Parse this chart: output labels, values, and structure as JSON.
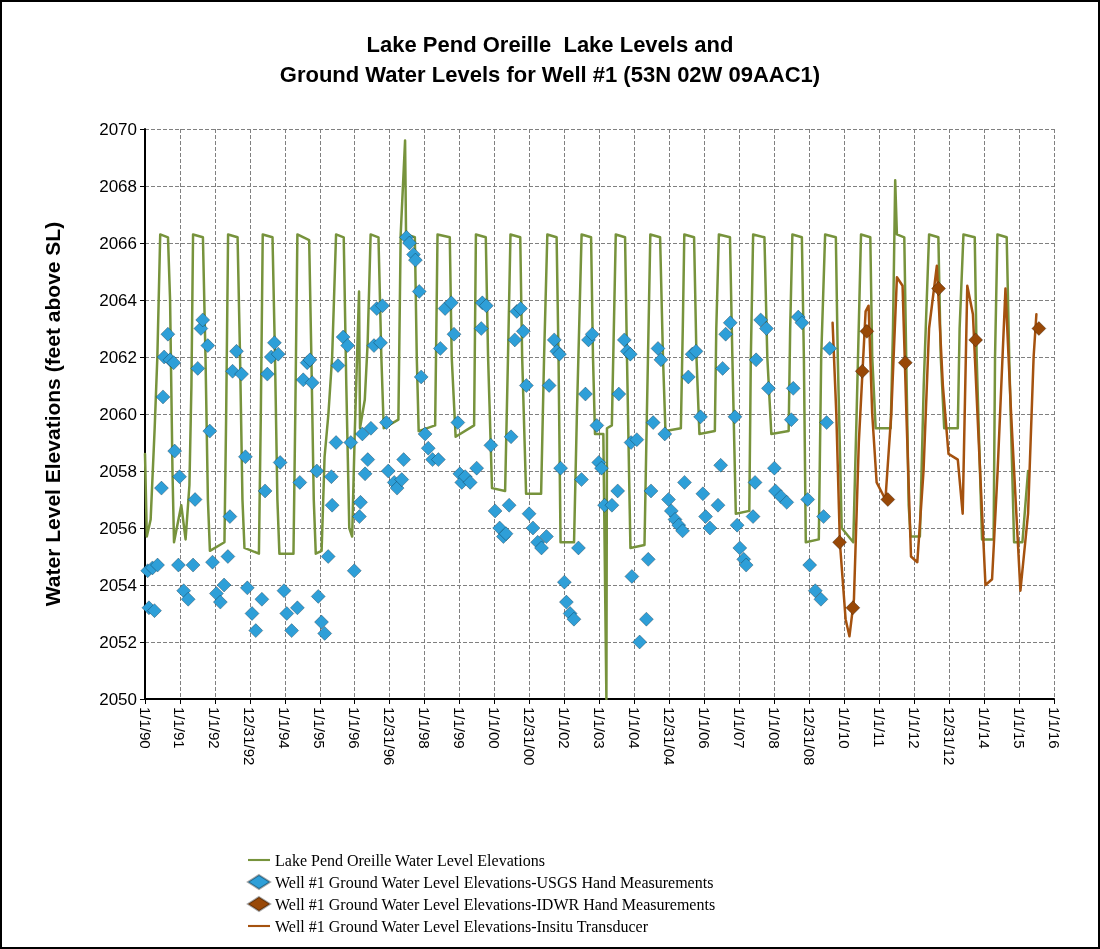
{
  "chart_data": {
    "type": "line",
    "title": "Lake Pend Oreille  Lake Levels and\nGround Water Levels for Well #1 (53N 02W 09AAC1)",
    "ylabel": "Water Level Elevations (feet above SL)",
    "xlim": [
      "1990-01-01",
      "2016-01-01"
    ],
    "xticks": [
      {
        "value": "1990-01-01",
        "label": "1/1/90"
      },
      {
        "value": "1991-01-01",
        "label": "1/1/91"
      },
      {
        "value": "1992-01-01",
        "label": "1/1/92"
      },
      {
        "value": "1992-12-31",
        "label": "12/31/92"
      },
      {
        "value": "1994-01-01",
        "label": "1/1/94"
      },
      {
        "value": "1995-01-01",
        "label": "1/1/95"
      },
      {
        "value": "1996-01-01",
        "label": "1/1/96"
      },
      {
        "value": "1996-12-31",
        "label": "12/31/96"
      },
      {
        "value": "1998-01-01",
        "label": "1/1/98"
      },
      {
        "value": "1999-01-01",
        "label": "1/1/99"
      },
      {
        "value": "2000-01-01",
        "label": "1/1/00"
      },
      {
        "value": "2000-12-31",
        "label": "12/31/00"
      },
      {
        "value": "2002-01-01",
        "label": "1/1/02"
      },
      {
        "value": "2003-01-01",
        "label": "1/1/03"
      },
      {
        "value": "2004-01-01",
        "label": "1/1/04"
      },
      {
        "value": "2004-12-31",
        "label": "12/31/04"
      },
      {
        "value": "2006-01-01",
        "label": "1/1/06"
      },
      {
        "value": "2007-01-01",
        "label": "1/1/07"
      },
      {
        "value": "2008-01-01",
        "label": "1/1/08"
      },
      {
        "value": "2008-12-31",
        "label": "12/31/08"
      },
      {
        "value": "2010-01-01",
        "label": "1/1/10"
      },
      {
        "value": "2011-01-01",
        "label": "1/1/11"
      },
      {
        "value": "2012-01-01",
        "label": "1/1/12"
      },
      {
        "value": "2012-12-31",
        "label": "12/31/12"
      },
      {
        "value": "2014-01-01",
        "label": "1/1/14"
      },
      {
        "value": "2015-01-01",
        "label": "1/1/15"
      },
      {
        "value": "2016-01-01",
        "label": "1/1/16"
      }
    ],
    "ylim": [
      2050,
      2070
    ],
    "yticks": [
      2050,
      2052,
      2054,
      2056,
      2058,
      2060,
      2062,
      2064,
      2066,
      2068,
      2070
    ],
    "grid": true,
    "legend": "bottom",
    "line_style": "solid",
    "series": [
      {
        "name": "Lake Pend Oreille Water Level Elevations",
        "marker": "none",
        "color": "#77933c",
        "x": [
          "1990-01-01",
          "1990-01-20",
          "1990-03-01",
          "1990-04-12",
          "1990-05-10",
          "1990-06-09",
          "1990-08-29",
          "1990-09-20",
          "1990-10-15",
          "1990-10-31",
          "1991-01-15",
          "1991-03-01",
          "1991-04-10",
          "1991-05-01",
          "1991-05-18",
          "1991-08-29",
          "1991-09-25",
          "1991-10-20",
          "1991-11-10",
          "1992-04-10",
          "1992-04-28",
          "1992-05-18",
          "1992-08-25",
          "1992-09-20",
          "1992-10-15",
          "1992-11-05",
          "1993-04-05",
          "1993-04-25",
          "1993-05-15",
          "1993-08-25",
          "1993-09-20",
          "1993-10-15",
          "1993-11-05",
          "1994-04-01",
          "1994-04-20",
          "1994-05-12",
          "1994-09-12",
          "1994-10-05",
          "1994-10-30",
          "1994-11-20",
          "1995-01-20",
          "1995-02-20",
          "1995-04-01",
          "1995-05-10",
          "1995-06-20",
          "1995-09-08",
          "1995-10-05",
          "1995-11-05",
          "1995-12-05",
          "1996-01-01",
          "1996-02-15",
          "1996-02-25",
          "1996-04-15",
          "1996-05-15",
          "1996-06-15",
          "1996-09-05",
          "1996-10-05",
          "1996-10-30",
          "1997-04-01",
          "1997-04-25",
          "1997-06-10",
          "1997-06-20",
          "1997-09-20",
          "1997-10-10",
          "1997-10-30",
          "1998-04-20",
          "1998-05-15",
          "1998-09-20",
          "1998-10-10",
          "1998-11-20",
          "1999-06-01",
          "1999-06-20",
          "1999-10-01",
          "1999-10-25",
          "1999-12-05",
          "2000-04-20",
          "2000-05-20",
          "2000-06-15",
          "2000-09-25",
          "2000-10-15",
          "2000-11-25",
          "2001-05-01",
          "2001-06-01",
          "2001-07-05",
          "2001-10-10",
          "2001-10-30",
          "2001-11-20",
          "2002-04-10",
          "2002-05-10",
          "2002-06-28",
          "2002-10-05",
          "2002-10-25",
          "2002-11-15",
          "2003-02-10",
          "2003-03-14",
          "2003-03-20",
          "2003-05-10",
          "2003-06-20",
          "2003-09-25",
          "2003-10-15",
          "2003-11-20",
          "2004-04-15",
          "2004-05-10",
          "2004-06-15",
          "2004-09-25",
          "2004-10-25",
          "2004-11-20",
          "2005-04-30",
          "2005-05-20",
          "2005-06-05",
          "2005-09-15",
          "2005-10-10",
          "2005-11-10",
          "2006-04-20",
          "2006-05-05",
          "2006-06-01",
          "2006-09-25",
          "2006-10-20",
          "2006-11-25",
          "2007-04-15",
          "2007-05-01",
          "2007-05-25",
          "2007-09-20",
          "2007-10-20",
          "2007-12-01",
          "2008-05-30",
          "2008-06-15",
          "2008-07-08",
          "2008-10-15",
          "2008-11-05",
          "2008-11-25",
          "2009-04-10",
          "2009-05-05",
          "2009-06-15",
          "2009-10-05",
          "2009-10-25",
          "2009-12-05",
          "2010-04-05",
          "2010-05-10",
          "2010-06-25",
          "2010-09-30",
          "2010-10-20",
          "2010-11-25",
          "2011-05-01",
          "2011-05-25",
          "2011-06-17",
          "2011-07-05",
          "2011-09-20",
          "2011-10-10",
          "2011-11-05",
          "2011-11-25",
          "2012-03-01",
          "2012-04-10",
          "2012-06-05",
          "2012-09-10",
          "2012-10-05",
          "2012-11-10",
          "2013-04-01",
          "2013-04-20",
          "2013-05-30",
          "2013-09-25",
          "2013-10-15",
          "2013-12-10",
          "2014-04-10",
          "2014-04-25",
          "2014-05-20",
          "2014-08-25",
          "2014-09-20",
          "2014-11-10",
          "2015-02-05",
          "2015-04-05"
        ],
        "values": [
          2058.6,
          2055.7,
          2056.3,
          2059.5,
          2062,
          2066.3,
          2066.2,
          2064,
          2058,
          2055.5,
          2056.8,
          2055.6,
          2057.5,
          2061,
          2066.3,
          2066.2,
          2062,
          2057,
          2055.2,
          2055.5,
          2060,
          2066.3,
          2066.2,
          2062,
          2057,
          2055.3,
          2055.1,
          2060,
          2066.3,
          2066.2,
          2062,
          2057,
          2055.1,
          2055.1,
          2060,
          2066.3,
          2066.1,
          2062,
          2057,
          2055.1,
          2055.2,
          2058.5,
          2060,
          2062,
          2066.3,
          2066.2,
          2061,
          2056,
          2055.7,
          2059.3,
          2064.3,
          2059.5,
          2060.5,
          2062.5,
          2066.3,
          2066.2,
          2062,
          2059.5,
          2059.8,
          2066.3,
          2069.6,
          2066.3,
          2066.2,
          2062,
          2059.4,
          2059.6,
          2066.3,
          2066.2,
          2062,
          2059.2,
          2059.6,
          2066.3,
          2066.2,
          2062,
          2057.4,
          2057.3,
          2062,
          2066.3,
          2066.2,
          2062,
          2057.2,
          2057.2,
          2062,
          2066.3,
          2066.2,
          2062,
          2055.5,
          2055.5,
          2060,
          2066.3,
          2066.2,
          2062,
          2059.3,
          2059.3,
          2050,
          2059.5,
          2059.6,
          2066.3,
          2066.2,
          2062,
          2055.3,
          2055.4,
          2060,
          2066.3,
          2066.2,
          2062,
          2059.4,
          2059.5,
          2063,
          2066.3,
          2066.2,
          2062,
          2059.3,
          2059.4,
          2063,
          2066.3,
          2066.2,
          2062,
          2056.5,
          2056.6,
          2062,
          2066.3,
          2066.2,
          2062,
          2059.3,
          2059.4,
          2063,
          2066.3,
          2066.2,
          2062,
          2055.5,
          2055.6,
          2062,
          2066.3,
          2066.2,
          2062,
          2056,
          2055.5,
          2060,
          2066.3,
          2066.2,
          2062,
          2059.5,
          2059.5,
          2063,
          2068.2,
          2066.3,
          2066.2,
          2062,
          2056.8,
          2055.7,
          2055.7,
          2061,
          2066.3,
          2066.2,
          2062,
          2059.5,
          2059.5,
          2063,
          2066.3,
          2066.2,
          2062,
          2055.6,
          2055.6,
          2062,
          2066.3,
          2066.2,
          2062,
          2055.5,
          2055.5,
          2058
        ]
      },
      {
        "name": "Well #1 Ground Water Level Elevations-USGS Hand Measurements",
        "type": "scatter",
        "marker": "diamond",
        "color": "#2e9fd8",
        "x": [
          "1990-01-29",
          "1990-03-20",
          "1990-05-12",
          "1990-02-11",
          "1990-04-10",
          "1990-06-22",
          "1990-07-08",
          "1990-08-28",
          "1990-07-20",
          "1990-09-20",
          "1990-10-28",
          "1990-11-07",
          "1990-12-28",
          "1990-12-16",
          "1991-02-09",
          "1991-03-28",
          "1991-05-18",
          "1991-06-08",
          "1991-07-06",
          "1991-08-08",
          "1991-08-27",
          "1991-10-19",
          "1991-11-09",
          "1991-12-07",
          "1992-01-17",
          "1992-02-27",
          "1992-04-06",
          "1992-05-16",
          "1992-06-06",
          "1992-07-04",
          "1992-08-14",
          "1992-10-06",
          "1992-11-15",
          "1992-12-05",
          "1993-01-23",
          "1993-03-03",
          "1993-05-06",
          "1993-06-08",
          "1993-07-02",
          "1993-08-12",
          "1993-09-14",
          "1993-10-24",
          "1993-11-13",
          "1993-12-23",
          "1994-01-21",
          "1994-03-13",
          "1994-05-12",
          "1994-06-06",
          "1994-07-12",
          "1994-08-22",
          "1994-09-20",
          "1994-10-14",
          "1994-12-01",
          "1994-12-16",
          "1995-01-19",
          "1995-02-21",
          "1995-03-30",
          "1995-05-02",
          "1995-05-10",
          "1995-07-10",
          "1995-09-02",
          "1995-10-19",
          "1995-06-20",
          "1995-11-21",
          "1995-12-27",
          "1996-02-19",
          "1996-03-01",
          "1996-03-21",
          "1996-04-18",
          "1996-05-16",
          "1996-06-18",
          "1996-07-20",
          "1996-09-27",
          "1996-08-18",
          "1996-10-17",
          "1996-11-27",
          "1996-12-16",
          "1997-02-17",
          "1997-03-18",
          "1997-05-06",
          "1997-05-26",
          "1997-06-24",
          "1997-07-26",
          "1997-09-06",
          "1997-09-26",
          "1997-11-05",
          "1997-11-25",
          "1998-01-05",
          "1998-02-07",
          "1998-03-24",
          "1998-05-24",
          "1998-06-14",
          "1998-08-02",
          "1998-10-06",
          "1998-11-03",
          "1998-12-13",
          "1999-01-03",
          "1999-01-23",
          "1999-02-28",
          "1999-04-21",
          "1999-06-28",
          "1999-08-26",
          "1999-10-06",
          "1999-08-15",
          "1999-11-23",
          "2000-01-06",
          "2000-02-23",
          "2000-04-02",
          "2000-04-29",
          "2000-06-01",
          "2000-06-21",
          "2000-07-30",
          "2000-08-20",
          "2000-09-29",
          "2000-10-27",
          "2000-11-28",
          "2000-12-26",
          "2001-02-05",
          "2001-03-26",
          "2001-05-05",
          "2001-06-26",
          "2001-07-24",
          "2001-09-15",
          "2001-10-12",
          "2001-11-09",
          "2001-11-21",
          "2001-12-30",
          "2002-01-20",
          "2002-02-28",
          "2002-04-09",
          "2002-05-26",
          "2002-06-27",
          "2002-08-07",
          "2002-09-08",
          "2002-10-17",
          "2002-12-04",
          "2002-12-24",
          "2003-01-22",
          "2003-02-23",
          "2003-05-11",
          "2003-07-10",
          "2003-07-22",
          "2003-09-17",
          "2003-10-18",
          "2003-11-19",
          "2003-11-27",
          "2004-01-26",
          "2003-12-05",
          "2004-02-24",
          "2004-05-05",
          "2004-05-24",
          "2004-06-22",
          "2004-07-15",
          "2004-09-03",
          "2004-10-04",
          "2004-11-13",
          "2004-12-22",
          "2005-01-20",
          "2005-02-28",
          "2005-04-08",
          "2005-05-18",
          "2005-06-07",
          "2005-07-17",
          "2005-08-26",
          "2005-10-05",
          "2005-11-22",
          "2005-12-16",
          "2006-01-13",
          "2006-02-28",
          "2006-05-23",
          "2006-06-20",
          "2006-07-10",
          "2006-08-11",
          "2006-09-28",
          "2006-11-16",
          "2006-12-09",
          "2007-01-06",
          "2007-02-16",
          "2007-03-13",
          "2007-05-24",
          "2007-06-14",
          "2007-06-25",
          "2007-08-12",
          "2007-10-11",
          "2007-11-01",
          "2008-01-02",
          "2008-01-13",
          "2008-03-11",
          "2008-05-10",
          "2008-06-27",
          "2008-07-17",
          "2008-09-07",
          "2008-10-16",
          "2008-12-15",
          "2009-01-05",
          "2009-03-04",
          "2009-05-02",
          "2009-05-30",
          "2009-07-01",
          "2009-08-02"
        ],
        "values": [
          2054.5,
          2054.6,
          2054.7,
          2053.2,
          2053.1,
          2057.4,
          2060.6,
          2062.8,
          2062,
          2061.9,
          2061.8,
          2058.7,
          2057.8,
          2054.7,
          2053.8,
          2053.5,
          2054.7,
          2057,
          2061.6,
          2063,
          2063.3,
          2062.4,
          2059.4,
          2054.8,
          2053.7,
          2053.4,
          2054,
          2055,
          2056.4,
          2061.5,
          2062.2,
          2061.4,
          2058.5,
          2053.9,
          2053,
          2052.4,
          2053.5,
          2057.3,
          2061.4,
          2062,
          2062.5,
          2062.1,
          2058.3,
          2053.8,
          2053,
          2052.4,
          2053.2,
          2057.6,
          2061.2,
          2061.8,
          2061.9,
          2061.1,
          2058,
          2053.6,
          2052.7,
          2052.3,
          2055,
          2057.8,
          2056.8,
          2061.7,
          2062.7,
          2062.4,
          2059,
          2059,
          2054.5,
          2056.4,
          2056.9,
          2059.3,
          2057.9,
          2058.4,
          2059.5,
          2062.4,
          2062.5,
          2063.7,
          2063.8,
          2059.7,
          2058,
          2057.6,
          2057.4,
          2057.7,
          2058.4,
          2066.2,
          2066,
          2065.6,
          2065.4,
          2064.3,
          2061.3,
          2059.3,
          2058.8,
          2058.4,
          2058.4,
          2062.3,
          2063.7,
          2063.9,
          2062.8,
          2059.7,
          2057.9,
          2057.6,
          2057.8,
          2057.6,
          2058.1,
          2063.9,
          2063.8,
          2063,
          2058.9,
          2056.6,
          2056,
          2055.7,
          2055.8,
          2056.8,
          2059.2,
          2062.6,
          2063.6,
          2063.7,
          2062.9,
          2061,
          2056.5,
          2056,
          2055.5,
          2055.3,
          2055.7,
          2061,
          2062.6,
          2062.2,
          2062.1,
          2058.1,
          2054.1,
          2053.4,
          2053,
          2052.8,
          2055.3,
          2057.7,
          2060.7,
          2062.6,
          2062.8,
          2059.6,
          2058.3,
          2058.1,
          2056.8,
          2056.8,
          2057.3,
          2060.7,
          2062.6,
          2062.2,
          2062.1,
          2059,
          2059.1,
          2054.3,
          2052,
          2052.8,
          2054.9,
          2057.3,
          2059.7,
          2062.3,
          2061.9,
          2059.3,
          2057,
          2056.6,
          2056.3,
          2056.1,
          2055.9,
          2057.6,
          2061.3,
          2062.1,
          2062.2,
          2059.9,
          2057.2,
          2056.4,
          2056,
          2056.8,
          2058.2,
          2061.6,
          2062.8,
          2063.2,
          2059.9,
          2056.1,
          2055.3,
          2054.9,
          2054.7,
          2056.4,
          2057.6,
          2061.9,
          2063.3,
          2063,
          2060.9,
          2058.1,
          2057.3,
          2057.1,
          2056.9,
          2059.8,
          2060.9,
          2063.4,
          2063.2,
          2057,
          2054.7,
          2053.8,
          2053.5,
          2056.4,
          2059.7,
          2062.3
        ]
      },
      {
        "name": "Well #1 Ground Water Level Elevations-IDWR Hand Measurements",
        "type": "scatter",
        "marker": "diamond",
        "color": "#984807",
        "x": [
          "2009-11-13",
          "2010-04-01",
          "2010-07-08",
          "2010-08-25",
          "2011-04-01",
          "2011-10-01",
          "2012-09-12",
          "2013-10-05",
          "2015-07-27"
        ],
        "values": [
          2055.5,
          2053.2,
          2061.5,
          2062.9,
          2057,
          2061.8,
          2064.4,
          2062.6,
          2063
        ]
      },
      {
        "name": "Well #1 Ground Water Level Elevations-Insitu Transducer",
        "marker": "none",
        "color": "#a5520f",
        "x": [
          "2009-09-01",
          "2009-10-10",
          "2009-11-16",
          "2010-01-15",
          "2010-02-24",
          "2010-04-12",
          "2010-06-02",
          "2010-08-12",
          "2010-09-12",
          "2010-10-20",
          "2010-12-05",
          "2011-03-07",
          "2011-05-07",
          "2011-07-05",
          "2011-09-02",
          "2011-10-12",
          "2011-11-29",
          "2012-02-03",
          "2012-04-08",
          "2012-06-05",
          "2012-08-25",
          "2012-10-27",
          "2012-12-25",
          "2013-04-01",
          "2013-05-22",
          "2013-07-09",
          "2013-09-06",
          "2013-11-06",
          "2014-01-15",
          "2014-03-25",
          "2014-05-22",
          "2014-08-12",
          "2014-10-10",
          "2015-01-15",
          "2015-04-05",
          "2015-06-02",
          "2015-07-01"
        ],
        "values": [
          2063.2,
          2060,
          2055.5,
          2052.8,
          2052.2,
          2053.5,
          2059,
          2063.6,
          2063.8,
          2060,
          2057.6,
          2057,
          2060,
          2064.8,
          2064.5,
          2060,
          2055,
          2054.8,
          2058,
          2063,
          2065.2,
          2061,
          2058.6,
          2058.4,
          2056.5,
          2064.5,
          2063.5,
          2059,
          2054,
          2054.2,
          2058,
          2064.4,
          2060,
          2053.8,
          2056.5,
          2062,
          2063.5
        ]
      }
    ]
  }
}
